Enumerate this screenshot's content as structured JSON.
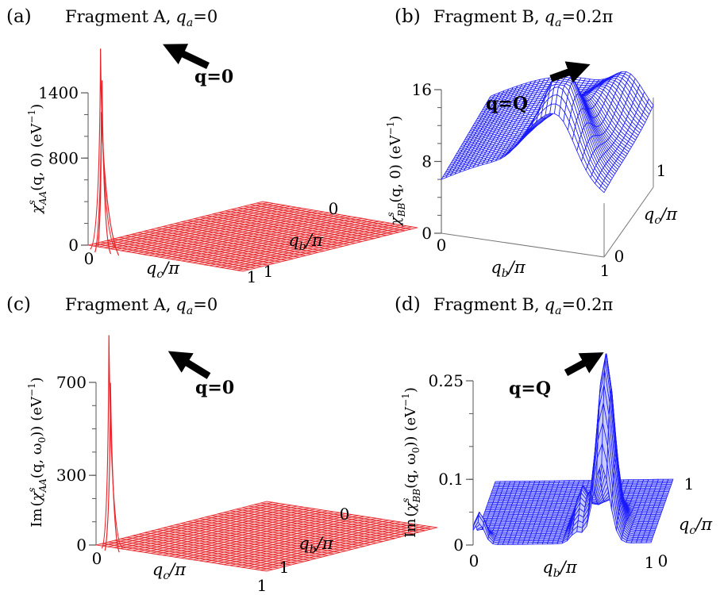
{
  "figure_colors": {
    "fragment_a": "#e8252a",
    "fragment_b": "#1a1aff",
    "fill_a": "#f5c6c6",
    "fill_b": "#c9ccff"
  },
  "chart_data": [
    {
      "id": "a",
      "type": "surface",
      "panel_label": "(a)",
      "title": "Fragment A, q_a=0",
      "title_parts": {
        "name": "Fragment A,",
        "var": "q",
        "sub": "a",
        "eq": "=0"
      },
      "zlabel": "χ^s_AA(q,0) (eV^-1)",
      "zlabel_parts": {
        "chi": "χ",
        "sup": "s",
        "sub": "AA",
        "arg": "(q, 0)",
        "unit": "(eV",
        "unit_sup": "−1",
        "close": ")"
      },
      "xlabel": "q_c/π",
      "ylabel": "q_b/π",
      "z_ticks": [
        "0",
        "800",
        "1400"
      ],
      "z_tick_values": [
        0,
        800,
        1400
      ],
      "zlim": [
        0,
        1400
      ],
      "x_ticks": [
        "0",
        "1"
      ],
      "y_ticks": [
        "0",
        "1"
      ],
      "annotation": "q=0",
      "peak": {
        "q_c": 0,
        "q_b": 0,
        "value": 1800
      },
      "baseline": 0
    },
    {
      "id": "b",
      "type": "surface",
      "panel_label": "(b)",
      "title": "Fragment B, q_a=0.2π",
      "title_parts": {
        "name": "Fragment B,",
        "var": "q",
        "sub": "a",
        "eq": "=0.2π"
      },
      "zlabel": "χ^s_BB(q,0) (eV^-1)",
      "zlabel_parts": {
        "chi": "χ",
        "sup": "s",
        "sub": "BB",
        "arg": "(q, 0)",
        "unit": "(eV",
        "unit_sup": "−1",
        "close": ")"
      },
      "xlabel": "q_b/π",
      "ylabel": "q_c/π",
      "z_ticks": [
        "0",
        "8",
        "16"
      ],
      "z_tick_values": [
        0,
        8,
        16
      ],
      "zlim": [
        0,
        16
      ],
      "x_ticks": [
        "0",
        "1"
      ],
      "y_ticks": [
        "0",
        "1"
      ],
      "annotation": "q=Q",
      "peak": {
        "q_b": 0.7,
        "q_c": 0.3,
        "value": 17
      }
    },
    {
      "id": "c",
      "type": "surface",
      "panel_label": "(c)",
      "title": "Fragment A, q_a=0",
      "title_parts": {
        "name": "Fragment A,",
        "var": "q",
        "sub": "a",
        "eq": "=0"
      },
      "zlabel": "Im(χ^s_AA(q,ω_0)) (eV^-1)",
      "zlabel_parts": {
        "pre": "Im",
        "chi": "χ",
        "sup": "s",
        "sub": "AA",
        "arg": "(q, ω",
        "arg_sub": "0",
        "arg_close": "))",
        "unit": "(eV",
        "unit_sup": "−1",
        "close": ")"
      },
      "xlabel": "q_c/π",
      "ylabel": "q_b/π",
      "z_ticks": [
        "0",
        "300",
        "700"
      ],
      "z_tick_values": [
        0,
        300,
        700
      ],
      "zlim": [
        0,
        700
      ],
      "x_ticks": [
        "0",
        "1"
      ],
      "y_ticks": [
        "0",
        "1"
      ],
      "annotation": "q=0",
      "peak": {
        "q_c": 0,
        "q_b": 0,
        "value": 900
      }
    },
    {
      "id": "d",
      "type": "surface",
      "panel_label": "(d)",
      "title": "Fragment B, q_a=0.2π",
      "title_parts": {
        "name": "Fragment B,",
        "var": "q",
        "sub": "a",
        "eq": "=0.2π"
      },
      "zlabel": "Im(χ^s_BB(q,ω_0)) (eV^-1)",
      "zlabel_parts": {
        "pre": "Im",
        "chi": "χ",
        "sup": "s",
        "sub": "BB",
        "arg": "(q, ω",
        "arg_sub": "0",
        "arg_close": "))",
        "unit": "(eV",
        "unit_sup": "−1",
        "close": ")"
      },
      "xlabel": "q_b/π",
      "ylabel": "q_c/π",
      "z_ticks": [
        "0",
        "0.1",
        "0.25"
      ],
      "z_tick_values": [
        0,
        0.1,
        0.25
      ],
      "zlim": [
        0,
        0.25
      ],
      "x_ticks": [
        "0",
        "1"
      ],
      "y_ticks": [
        "0",
        "1"
      ],
      "annotation": "q=Q",
      "peak": {
        "q_b": 0.7,
        "q_c": 0.3,
        "value": 0.27
      }
    }
  ]
}
